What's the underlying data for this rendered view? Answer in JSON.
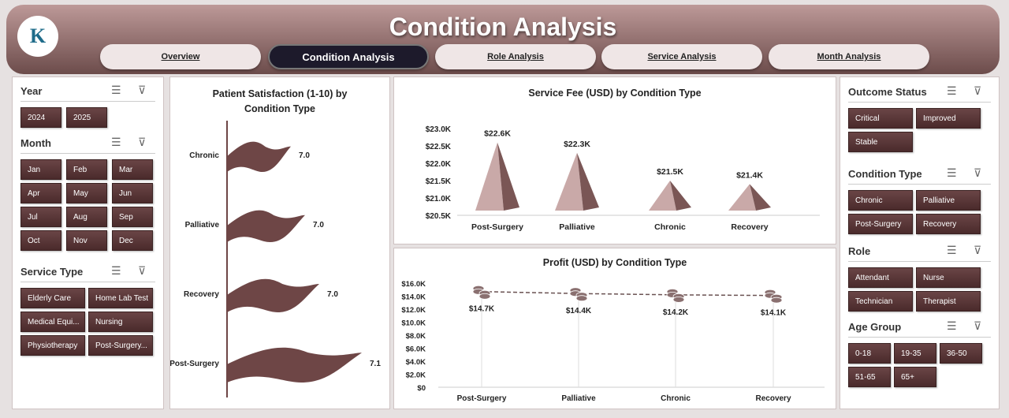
{
  "header": {
    "title": "Condition Analysis",
    "logo_text": "K"
  },
  "tabs": [
    {
      "label": "Overview"
    },
    {
      "label": "Condition Analysis"
    },
    {
      "label": "Role Analysis"
    },
    {
      "label": "Service Analysis"
    },
    {
      "label": "Month Analysis"
    }
  ],
  "left": {
    "year": {
      "title": "Year",
      "items": [
        "2024",
        "2025"
      ]
    },
    "month": {
      "title": "Month",
      "items": [
        "Jan",
        "Feb",
        "Mar",
        "Apr",
        "May",
        "Jun",
        "Jul",
        "Aug",
        "Sep",
        "Oct",
        "Nov",
        "Dec"
      ]
    },
    "service": {
      "title": "Service Type",
      "items": [
        "Elderly Care",
        "Home Lab Test",
        "Medical Equi...",
        "Nursing",
        "Physiotherapy",
        "Post-Surgery..."
      ]
    }
  },
  "right": {
    "outcome": {
      "title": "Outcome Status",
      "items": [
        "Critical",
        "Improved",
        "Stable"
      ]
    },
    "condition": {
      "title": "Condition Type",
      "items": [
        "Chronic",
        "Palliative",
        "Post-Surgery",
        "Recovery"
      ]
    },
    "role": {
      "title": "Role",
      "items": [
        "Attendant",
        "Nurse",
        "Technician",
        "Therapist"
      ]
    },
    "age": {
      "title": "Age Group",
      "items": [
        "0-18",
        "19-35",
        "36-50",
        "51-65",
        "65+"
      ]
    }
  },
  "colors": {
    "bar": "#6e4646",
    "accent": "#1d1a2b"
  },
  "chart_data": [
    {
      "type": "bar",
      "title": "Patient Satisfaction (1-10) by Condition Type",
      "categories": [
        "Chronic",
        "Palliative",
        "Recovery",
        "Post-Surgery"
      ],
      "values": [
        7.0,
        7.02,
        7.04,
        7.1
      ],
      "labels": [
        "7.0",
        "7.0",
        "7.0",
        "7.1"
      ],
      "xlim": [
        6.91,
        7.15
      ]
    },
    {
      "type": "bar",
      "title": "Service Fee (USD) by Condition Type",
      "categories": [
        "Post-Surgery",
        "Palliative",
        "Chronic",
        "Recovery"
      ],
      "values": [
        22600,
        22300,
        21500,
        21400
      ],
      "labels": [
        "$22.6K",
        "$22.3K",
        "$21.5K",
        "$21.4K"
      ],
      "ylim": [
        20500,
        23000
      ],
      "yticks": [
        "$23.0K",
        "$22.5K",
        "$22.0K",
        "$21.5K",
        "$21.0K",
        "$20.5K"
      ]
    },
    {
      "type": "line",
      "title": "Profit (USD) by Condition Type",
      "categories": [
        "Post-Surgery",
        "Palliative",
        "Chronic",
        "Recovery"
      ],
      "values": [
        14700,
        14400,
        14200,
        14100
      ],
      "labels": [
        "$14.7K",
        "$14.4K",
        "$14.2K",
        "$14.1K"
      ],
      "ylim": [
        0,
        16000
      ],
      "yticks": [
        "$16.0K",
        "$14.0K",
        "$12.0K",
        "$10.0K",
        "$8.0K",
        "$6.0K",
        "$4.0K",
        "$2.0K",
        "$0"
      ]
    }
  ]
}
